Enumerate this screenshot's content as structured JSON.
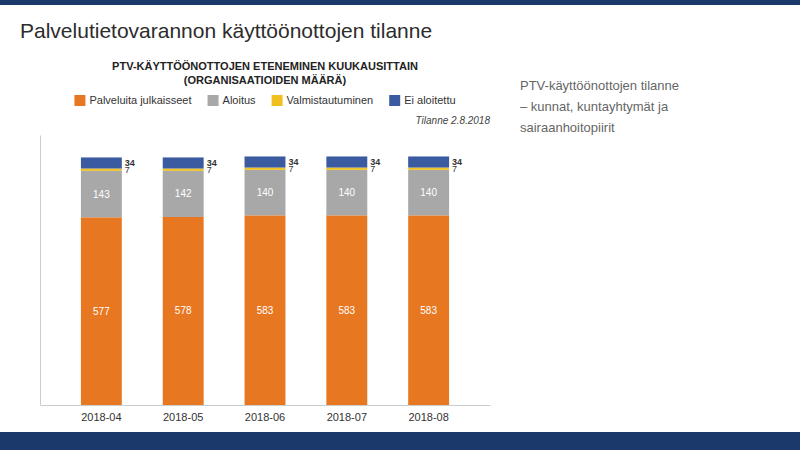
{
  "chart_data": {
    "type": "bar",
    "stacked": true,
    "title": "Palvelutietovarannon käyttöönottojen tilanne",
    "subtitle": "PTV-KÄYTTÖÖNOTTOJEN ETENEMINEN KUUKAUSITTAIN\n(ORGANISAATIOIDEN MÄÄRÄ)",
    "annotations": [
      "Tilanne 2.8.2018",
      "PTV-käyttöönottojen tilanne\n– kunnat, kuntayhtymät ja\nsairaanhoitopiirit"
    ],
    "categories": [
      "2018-04",
      "2018-05",
      "2018-06",
      "2018-07",
      "2018-08"
    ],
    "series": [
      {
        "name": "Palveluita julkaisseet",
        "color": "#E87722",
        "values": [
          577,
          578,
          583,
          583,
          583
        ]
      },
      {
        "name": "Aloitus",
        "color": "#A8A8A8",
        "values": [
          143,
          142,
          140,
          140,
          140
        ]
      },
      {
        "name": "Valmistautuminen",
        "color": "#F0C020",
        "values": [
          7,
          7,
          7,
          7,
          7
        ]
      },
      {
        "name": "Ei aloitettu",
        "color": "#3A5BA0",
        "values": [
          34,
          34,
          34,
          34,
          34
        ]
      }
    ],
    "ylim": [
      0,
      830
    ],
    "grid": false,
    "legend": "top",
    "data_labels": true,
    "tick_labels": "x"
  }
}
